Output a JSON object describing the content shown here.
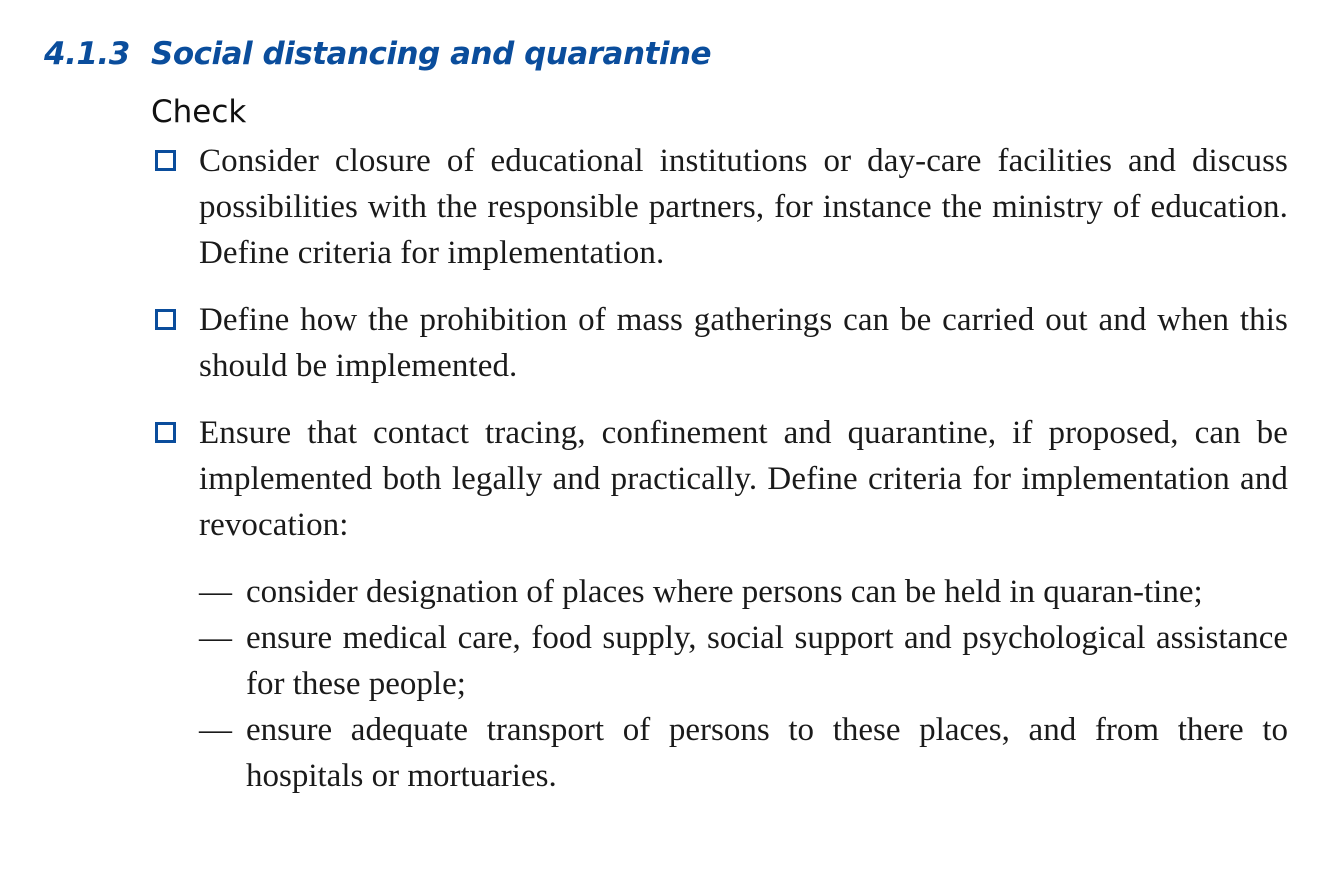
{
  "section": {
    "number": "4.1.3",
    "title": "Social distancing and quarantine",
    "subhead": "Check"
  },
  "checklist": [
    {
      "text": "Consider closure of educational institutions or day-care facilities and discuss possibilities with the responsible partners, for instance the ministry of education. Define criteria for implementation."
    },
    {
      "text": "Define how the prohibition of mass gatherings can be carried out and when this should be implemented."
    },
    {
      "text": "Ensure that contact tracing, confinement and quarantine, if proposed, can be implemented both legally and practically. Define criteria for implementation and revocation:"
    }
  ],
  "subitems": [
    {
      "dash": "—",
      "text": "consider designation of places where persons can be held in quaran-tine;"
    },
    {
      "dash": "—",
      "text": "ensure medical care, food supply, social support and psychological assistance for these people;"
    },
    {
      "dash": "—",
      "text": "ensure adequate transport of persons to these places, and from there to hospitals or mortuaries."
    }
  ],
  "colors": {
    "heading": "#0a4d9c",
    "checkbox_border": "#0a4d9c",
    "body_text": "#1a1a1a"
  },
  "icons": {
    "checkbox": "empty-checkbox-icon"
  }
}
